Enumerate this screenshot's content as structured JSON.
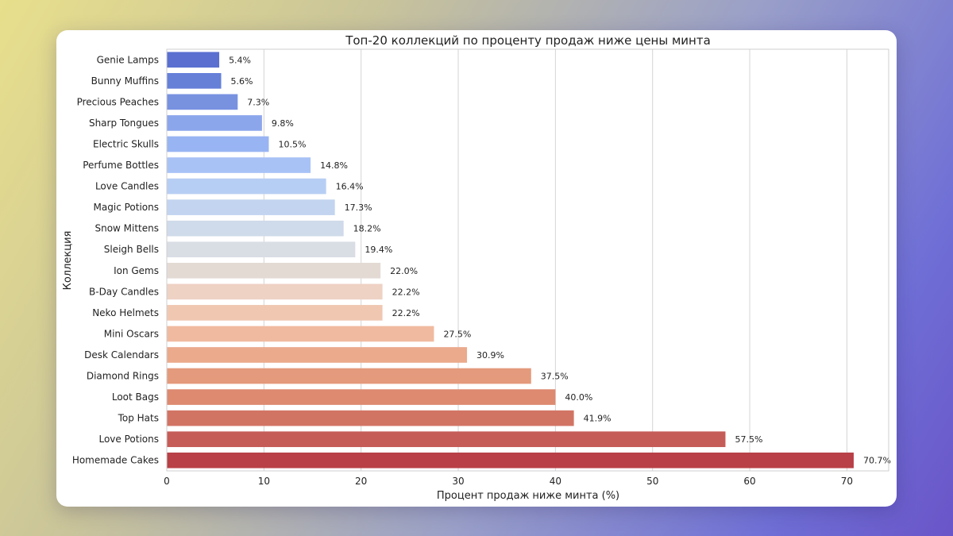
{
  "chart_data": {
    "type": "bar",
    "orientation": "horizontal",
    "title": "Топ-20 коллекций по проценту продаж ниже цены минта",
    "xlabel": "Процент продаж ниже минта (%)",
    "ylabel": "Коллекция",
    "xlim": [
      0,
      74.3
    ],
    "xticks": [
      0,
      10,
      20,
      30,
      40,
      50,
      60,
      70
    ],
    "grid": true,
    "categories": [
      "Genie Lamps",
      "Bunny Muffins",
      "Precious Peaches",
      "Sharp Tongues",
      "Electric Skulls",
      "Perfume Bottles",
      "Love Candles",
      "Magic Potions",
      "Snow Mittens",
      "Sleigh Bells",
      "Ion Gems",
      "B-Day Candles",
      "Neko Helmets",
      "Mini Oscars",
      "Desk Calendars",
      "Diamond Rings",
      "Loot Bags",
      "Top Hats",
      "Love Potions",
      "Homemade Cakes"
    ],
    "values": [
      5.4,
      5.6,
      7.3,
      9.8,
      10.5,
      14.8,
      16.4,
      17.3,
      18.2,
      19.4,
      22.0,
      22.2,
      22.2,
      27.5,
      30.9,
      37.5,
      40.0,
      41.9,
      57.5,
      70.7
    ],
    "value_labels": [
      "5.4%",
      "5.6%",
      "7.3%",
      "9.8%",
      "10.5%",
      "14.8%",
      "16.4%",
      "17.3%",
      "18.2%",
      "19.4%",
      "22.0%",
      "22.2%",
      "22.2%",
      "27.5%",
      "30.9%",
      "37.5%",
      "40.0%",
      "41.9%",
      "57.5%",
      "70.7%"
    ],
    "colors": [
      "#5a6fd0",
      "#6680d8",
      "#7892e0",
      "#8ca6ec",
      "#98b4f2",
      "#a8c2f6",
      "#b7cef4",
      "#c2d4f0",
      "#cfdaea",
      "#d9dde4",
      "#e4dad4",
      "#eed2c4",
      "#f0c8b2",
      "#f0baa0",
      "#ebaa8c",
      "#e49a7c",
      "#dd8a70",
      "#d27464",
      "#c65c58",
      "#b84046"
    ]
  }
}
